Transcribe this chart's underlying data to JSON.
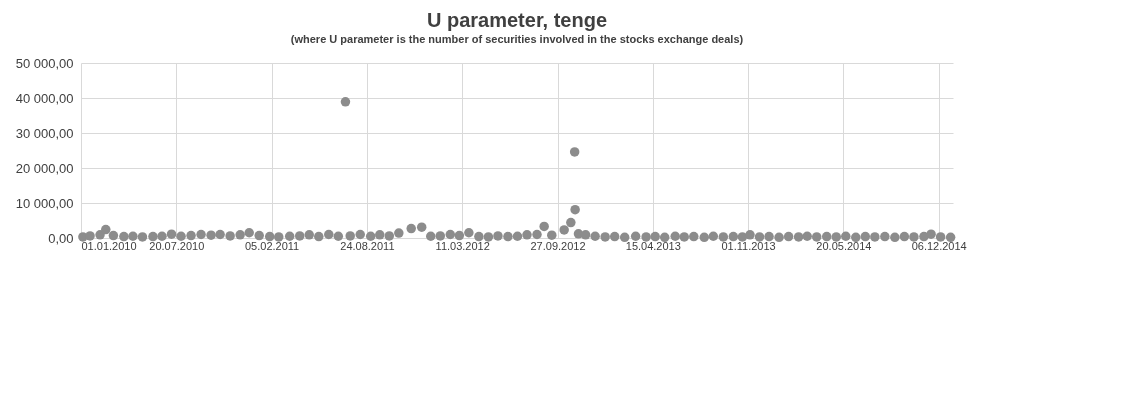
{
  "chart_data": {
    "type": "scatter",
    "title": "U parameter, tenge",
    "subtitle": "(where U parameter is the number of securities involved in the stocks exchange deals)",
    "x": [
      "2010-01-05",
      "2010-01-20",
      "2010-02-10",
      "2010-02-22",
      "2010-03-10",
      "2010-04-01",
      "2010-04-20",
      "2010-05-10",
      "2010-06-01",
      "2010-06-20",
      "2010-07-10",
      "2010-07-30",
      "2010-08-20",
      "2010-09-10",
      "2010-10-01",
      "2010-10-20",
      "2010-11-10",
      "2010-12-01",
      "2010-12-20",
      "2011-01-10",
      "2011-02-01",
      "2011-02-20",
      "2011-03-15",
      "2011-04-05",
      "2011-04-25",
      "2011-05-15",
      "2011-06-05",
      "2011-06-25",
      "2011-07-10",
      "2011-07-20",
      "2011-08-10",
      "2011-09-01",
      "2011-09-20",
      "2011-10-10",
      "2011-10-30",
      "2011-11-25",
      "2011-12-17",
      "2012-01-05",
      "2012-01-25",
      "2012-02-15",
      "2012-03-05",
      "2012-03-25",
      "2012-04-15",
      "2012-05-05",
      "2012-05-25",
      "2012-06-15",
      "2012-07-05",
      "2012-07-25",
      "2012-08-15",
      "2012-08-30",
      "2012-09-15",
      "2012-10-11",
      "2012-10-25",
      "2012-11-02",
      "2012-11-03",
      "2012-11-10",
      "2012-11-25",
      "2012-12-15",
      "2013-01-05",
      "2013-01-25",
      "2013-02-15",
      "2013-03-10",
      "2013-04-01",
      "2013-04-20",
      "2013-05-10",
      "2013-06-01",
      "2013-06-20",
      "2013-07-10",
      "2013-08-01",
      "2013-08-20",
      "2013-09-10",
      "2013-10-01",
      "2013-10-20",
      "2013-11-05",
      "2013-11-25",
      "2013-12-15",
      "2014-01-05",
      "2014-01-25",
      "2014-02-15",
      "2014-03-05",
      "2014-03-25",
      "2014-04-15",
      "2014-05-05",
      "2014-05-25",
      "2014-06-15",
      "2014-07-05",
      "2014-07-25",
      "2014-08-15",
      "2014-09-05",
      "2014-09-25",
      "2014-10-15",
      "2014-11-05",
      "2014-11-20",
      "2014-12-10",
      "2014-12-31"
    ],
    "values": [
      300,
      600,
      900,
      2400,
      700,
      400,
      500,
      300,
      400,
      500,
      1100,
      500,
      700,
      1000,
      800,
      1000,
      600,
      900,
      1500,
      700,
      400,
      300,
      500,
      600,
      900,
      400,
      1000,
      500,
      38900,
      600,
      1000,
      500,
      900,
      600,
      1400,
      2700,
      3100,
      500,
      600,
      1000,
      700,
      1500,
      400,
      300,
      600,
      400,
      500,
      900,
      1000,
      3300,
      800,
      2300,
      4400,
      24600,
      8100,
      1200,
      900,
      500,
      300,
      400,
      200,
      500,
      300,
      400,
      200,
      500,
      300,
      400,
      200,
      500,
      300,
      400,
      300,
      900,
      300,
      400,
      200,
      400,
      300,
      500,
      300,
      400,
      300,
      500,
      200,
      400,
      300,
      400,
      200,
      400,
      300,
      400,
      1100,
      300,
      200
    ],
    "color": "#8c8c8c",
    "marker": "circle",
    "grid": true,
    "xlim": [
      "2010-01-01",
      "2015-01-05"
    ],
    "xticks": [
      {
        "value": "2010-01-01",
        "label": "01.01.2010"
      },
      {
        "value": "2010-07-20",
        "label": "20.07.2010"
      },
      {
        "value": "2011-02-05",
        "label": "05.02.2011"
      },
      {
        "value": "2011-08-24",
        "label": "24.08.2011"
      },
      {
        "value": "2012-03-11",
        "label": "11.03.2012"
      },
      {
        "value": "2012-09-27",
        "label": "27.09.2012"
      },
      {
        "value": "2013-04-15",
        "label": "15.04.2013"
      },
      {
        "value": "2013-11-01",
        "label": "01.11.2013"
      },
      {
        "value": "2014-05-20",
        "label": "20.05.2014"
      },
      {
        "value": "2014-12-06",
        "label": "06.12.2014"
      }
    ],
    "ylim": [
      0,
      50000
    ],
    "yticks": [
      {
        "value": 0,
        "label": "0,00"
      },
      {
        "value": 10000,
        "label": "10 000,00"
      },
      {
        "value": 20000,
        "label": "20 000,00"
      },
      {
        "value": 30000,
        "label": "30 000,00"
      },
      {
        "value": 40000,
        "label": "40 000,00"
      },
      {
        "value": 50000,
        "label": "50 000,00"
      }
    ]
  }
}
